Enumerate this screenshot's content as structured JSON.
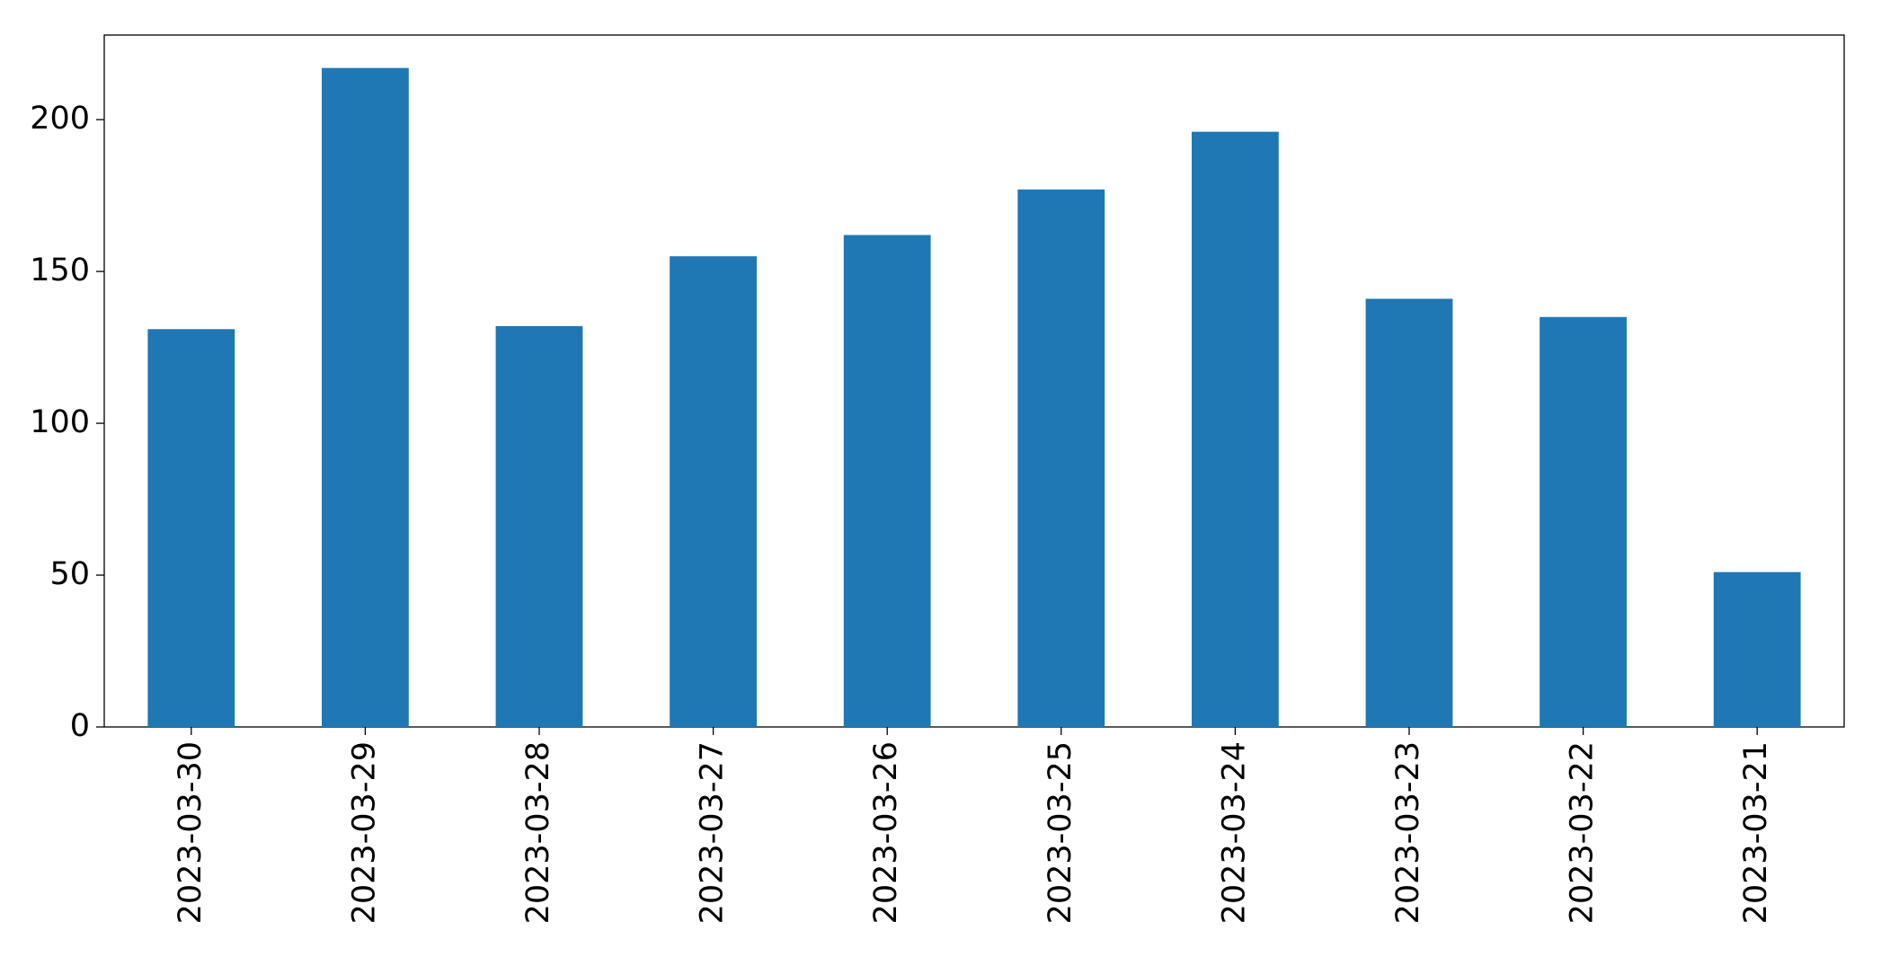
{
  "chart_data": {
    "type": "bar",
    "categories": [
      "2023-03-30",
      "2023-03-29",
      "2023-03-28",
      "2023-03-27",
      "2023-03-26",
      "2023-03-25",
      "2023-03-24",
      "2023-03-23",
      "2023-03-22",
      "2023-03-21"
    ],
    "values": [
      131,
      217,
      132,
      155,
      162,
      177,
      196,
      141,
      135,
      51
    ],
    "color": "#1f77b4",
    "ylim": [
      0,
      227.85
    ],
    "yticks": [
      0,
      50,
      100,
      150,
      200
    ],
    "grid": false
  }
}
